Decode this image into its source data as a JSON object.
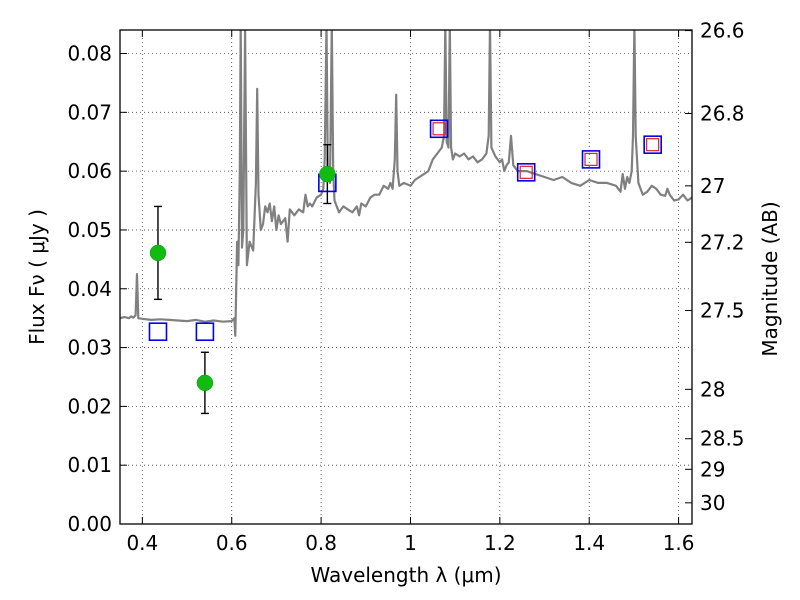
{
  "chart_data": {
    "type": "scatter",
    "xlabel": "Wavelength  λ (μm)",
    "ylabel": "Flux  Fν  ( μJy )",
    "y2label": "Magnitude (AB)",
    "xlim": [
      0.35,
      1.63
    ],
    "ylim": [
      0.0,
      0.084
    ],
    "grid": true,
    "x_ticks": [
      {
        "value": 0.4,
        "label": "0.4"
      },
      {
        "value": 0.6,
        "label": "0.6"
      },
      {
        "value": 0.8,
        "label": "0.8"
      },
      {
        "value": 1.0,
        "label": "1"
      },
      {
        "value": 1.2,
        "label": "1.2"
      },
      {
        "value": 1.4,
        "label": "1.4"
      },
      {
        "value": 1.6,
        "label": "1.6"
      }
    ],
    "y_ticks": [
      {
        "value": 0.0,
        "label": "0.00"
      },
      {
        "value": 0.01,
        "label": "0.01"
      },
      {
        "value": 0.02,
        "label": "0.02"
      },
      {
        "value": 0.03,
        "label": "0.03"
      },
      {
        "value": 0.04,
        "label": "0.04"
      },
      {
        "value": 0.05,
        "label": "0.05"
      },
      {
        "value": 0.06,
        "label": "0.06"
      },
      {
        "value": 0.07,
        "label": "0.07"
      },
      {
        "value": 0.08,
        "label": "0.08"
      }
    ],
    "y2_ticks": [
      {
        "flux": 0.0839,
        "label": "26.6"
      },
      {
        "flux": 0.0698,
        "label": "26.8"
      },
      {
        "flux": 0.0575,
        "label": "27"
      },
      {
        "flux": 0.0479,
        "label": "27.2"
      },
      {
        "flux": 0.0363,
        "label": "27.5"
      },
      {
        "flux": 0.0229,
        "label": "28"
      },
      {
        "flux": 0.0145,
        "label": "28.5"
      },
      {
        "flux": 0.0093,
        "label": "29"
      },
      {
        "flux": 0.0036,
        "label": "30"
      }
    ],
    "model_spectrum": {
      "color": "#808080",
      "points": [
        [
          0.35,
          0.035
        ],
        [
          0.36,
          0.0352
        ],
        [
          0.37,
          0.035
        ],
        [
          0.375,
          0.0353
        ],
        [
          0.38,
          0.0351
        ],
        [
          0.385,
          0.0355
        ],
        [
          0.388,
          0.0425
        ],
        [
          0.391,
          0.035
        ],
        [
          0.4,
          0.0349
        ],
        [
          0.42,
          0.0347
        ],
        [
          0.44,
          0.0348
        ],
        [
          0.46,
          0.0347
        ],
        [
          0.48,
          0.0346
        ],
        [
          0.5,
          0.0345
        ],
        [
          0.52,
          0.0347
        ],
        [
          0.54,
          0.0344
        ],
        [
          0.56,
          0.0346
        ],
        [
          0.58,
          0.0344
        ],
        [
          0.6,
          0.0345
        ],
        [
          0.606,
          0.035
        ],
        [
          0.608,
          0.032
        ],
        [
          0.612,
          0.048
        ],
        [
          0.615,
          0.044
        ],
        [
          0.618,
          0.06
        ],
        [
          0.62,
          0.085
        ],
        [
          0.623,
          0.047
        ],
        [
          0.626,
          0.05
        ],
        [
          0.63,
          0.084
        ],
        [
          0.634,
          0.044
        ],
        [
          0.64,
          0.048
        ],
        [
          0.648,
          0.0465
        ],
        [
          0.654,
          0.058
        ],
        [
          0.657,
          0.074
        ],
        [
          0.66,
          0.056
        ],
        [
          0.665,
          0.05
        ],
        [
          0.67,
          0.051
        ],
        [
          0.675,
          0.054
        ],
        [
          0.68,
          0.053
        ],
        [
          0.685,
          0.0545
        ],
        [
          0.69,
          0.0515
        ],
        [
          0.695,
          0.054
        ],
        [
          0.7,
          0.05
        ],
        [
          0.705,
          0.0525
        ],
        [
          0.71,
          0.051
        ],
        [
          0.72,
          0.052
        ],
        [
          0.725,
          0.048
        ],
        [
          0.73,
          0.0535
        ],
        [
          0.74,
          0.0525
        ],
        [
          0.75,
          0.0535
        ],
        [
          0.76,
          0.053
        ],
        [
          0.765,
          0.056
        ],
        [
          0.77,
          0.054
        ],
        [
          0.775,
          0.0545
        ],
        [
          0.78,
          0.054
        ],
        [
          0.79,
          0.0555
        ],
        [
          0.8,
          0.056
        ],
        [
          0.805,
          0.057
        ],
        [
          0.808,
          0.062
        ],
        [
          0.812,
          0.085
        ],
        [
          0.815,
          0.06
        ],
        [
          0.82,
          0.058
        ],
        [
          0.824,
          0.085
        ],
        [
          0.827,
          0.06
        ],
        [
          0.83,
          0.055
        ],
        [
          0.835,
          0.054
        ],
        [
          0.84,
          0.053
        ],
        [
          0.85,
          0.054
        ],
        [
          0.86,
          0.0535
        ],
        [
          0.87,
          0.053
        ],
        [
          0.88,
          0.054
        ],
        [
          0.885,
          0.0525
        ],
        [
          0.89,
          0.0545
        ],
        [
          0.9,
          0.054
        ],
        [
          0.91,
          0.0555
        ],
        [
          0.92,
          0.056
        ],
        [
          0.93,
          0.056
        ],
        [
          0.94,
          0.0575
        ],
        [
          0.95,
          0.057
        ],
        [
          0.955,
          0.058
        ],
        [
          0.96,
          0.057
        ],
        [
          0.965,
          0.062
        ],
        [
          0.968,
          0.073
        ],
        [
          0.971,
          0.06
        ],
        [
          0.975,
          0.0575
        ],
        [
          0.985,
          0.058
        ],
        [
          1.0,
          0.0575
        ],
        [
          1.01,
          0.0585
        ],
        [
          1.02,
          0.059
        ],
        [
          1.03,
          0.0595
        ],
        [
          1.04,
          0.06
        ],
        [
          1.05,
          0.062
        ],
        [
          1.06,
          0.063
        ],
        [
          1.07,
          0.064
        ],
        [
          1.075,
          0.066
        ],
        [
          1.078,
          0.085
        ],
        [
          1.081,
          0.065
        ],
        [
          1.085,
          0.064
        ],
        [
          1.088,
          0.085
        ],
        [
          1.091,
          0.064
        ],
        [
          1.095,
          0.062
        ],
        [
          1.1,
          0.063
        ],
        [
          1.11,
          0.0625
        ],
        [
          1.12,
          0.063
        ],
        [
          1.13,
          0.062
        ],
        [
          1.14,
          0.0625
        ],
        [
          1.15,
          0.0615
        ],
        [
          1.16,
          0.062
        ],
        [
          1.17,
          0.063
        ],
        [
          1.175,
          0.066
        ],
        [
          1.178,
          0.085
        ],
        [
          1.181,
          0.064
        ],
        [
          1.19,
          0.0625
        ],
        [
          1.2,
          0.0615
        ],
        [
          1.205,
          0.062
        ],
        [
          1.21,
          0.06
        ],
        [
          1.215,
          0.061
        ],
        [
          1.22,
          0.0615
        ],
        [
          1.225,
          0.066
        ],
        [
          1.23,
          0.061
        ],
        [
          1.24,
          0.06
        ],
        [
          1.26,
          0.06
        ],
        [
          1.28,
          0.0595
        ],
        [
          1.3,
          0.059
        ],
        [
          1.32,
          0.0585
        ],
        [
          1.34,
          0.059
        ],
        [
          1.36,
          0.058
        ],
        [
          1.38,
          0.0575
        ],
        [
          1.4,
          0.0585
        ],
        [
          1.42,
          0.058
        ],
        [
          1.44,
          0.058
        ],
        [
          1.46,
          0.0575
        ],
        [
          1.47,
          0.0565
        ],
        [
          1.475,
          0.0595
        ],
        [
          1.48,
          0.057
        ],
        [
          1.485,
          0.059
        ],
        [
          1.49,
          0.058
        ],
        [
          1.495,
          0.06
        ],
        [
          1.498,
          0.066
        ],
        [
          1.501,
          0.085
        ],
        [
          1.504,
          0.066
        ],
        [
          1.51,
          0.058
        ],
        [
          1.52,
          0.056
        ],
        [
          1.53,
          0.0565
        ],
        [
          1.54,
          0.0575
        ],
        [
          1.55,
          0.057
        ],
        [
          1.56,
          0.056
        ],
        [
          1.57,
          0.0558
        ],
        [
          1.575,
          0.057
        ],
        [
          1.58,
          0.056
        ],
        [
          1.59,
          0.055
        ],
        [
          1.6,
          0.0552
        ],
        [
          1.61,
          0.056
        ],
        [
          1.62,
          0.055
        ],
        [
          1.63,
          0.0555
        ]
      ]
    },
    "observed_flux": {
      "color": "#11bb11",
      "points": [
        {
          "x": 0.435,
          "y": 0.0461,
          "err": 0.0079
        },
        {
          "x": 0.54,
          "y": 0.024,
          "err": 0.0052
        },
        {
          "x": 0.814,
          "y": 0.0595,
          "err": 0.005
        }
      ]
    },
    "model_broadband": {
      "color": "#0000ee",
      "points": [
        {
          "x": 0.435,
          "y": 0.0327
        },
        {
          "x": 0.54,
          "y": 0.0327
        },
        {
          "x": 0.814,
          "y": 0.058
        },
        {
          "x": 1.064,
          "y": 0.0672
        },
        {
          "x": 1.259,
          "y": 0.0598
        },
        {
          "x": 1.404,
          "y": 0.062
        },
        {
          "x": 1.542,
          "y": 0.0645
        }
      ]
    },
    "model_inner": {
      "color": "#dd2222",
      "points": [
        {
          "x": 1.064,
          "y": 0.0672
        },
        {
          "x": 1.259,
          "y": 0.0598
        },
        {
          "x": 1.404,
          "y": 0.062
        },
        {
          "x": 1.542,
          "y": 0.0645
        }
      ]
    }
  }
}
